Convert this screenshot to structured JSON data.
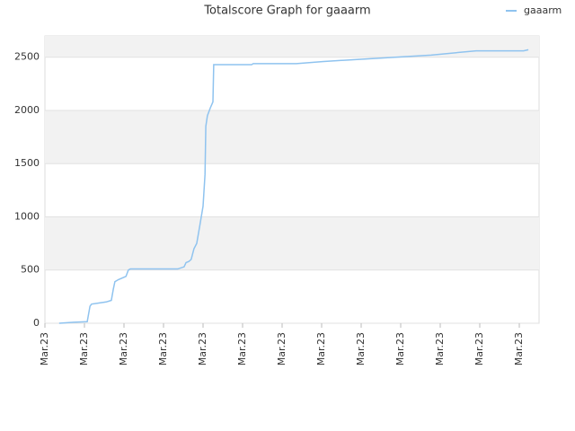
{
  "chart_data": {
    "type": "line",
    "title": "Totalscore Graph for gaaarm",
    "x": [
      0.36,
      0.73,
      1.07,
      1.14,
      1.18,
      1.36,
      1.55,
      1.68,
      1.73,
      1.77,
      1.86,
      2.05,
      2.11,
      2.16,
      3.36,
      3.52,
      3.57,
      3.64,
      3.7,
      3.77,
      3.84,
      3.91,
      4,
      4.05,
      4.07,
      4.11,
      4.18,
      4.25,
      4.27,
      5.23,
      5.27,
      6.36,
      7.05,
      7.95,
      8.86,
      9.77,
      10.91,
      12.11,
      12.23
    ],
    "series": [
      {
        "name": "gaaarm",
        "color": "#8fc3ef",
        "values": [
          0,
          10,
          15,
          160,
          180,
          190,
          200,
          215,
          320,
          390,
          410,
          440,
          500,
          510,
          510,
          530,
          570,
          580,
          600,
          700,
          750,
          900,
          1100,
          1400,
          1850,
          1950,
          2020,
          2080,
          2430,
          2430,
          2440,
          2440,
          2460,
          2480,
          2500,
          2520,
          2560,
          2560,
          2570
        ]
      }
    ],
    "xlim": [
      0,
      12.5
    ],
    "xticks": [
      {
        "value": 0,
        "label": "Mar.23"
      },
      {
        "value": 1,
        "label": "Mar.23"
      },
      {
        "value": 2,
        "label": "Mar.23"
      },
      {
        "value": 3,
        "label": "Mar.23"
      },
      {
        "value": 4,
        "label": "Mar.23"
      },
      {
        "value": 5,
        "label": "Mar.23"
      },
      {
        "value": 6,
        "label": "Mar.23"
      },
      {
        "value": 7,
        "label": "Mar.23"
      },
      {
        "value": 8,
        "label": "Mar.23"
      },
      {
        "value": 9,
        "label": "Mar.23"
      },
      {
        "value": 10,
        "label": "Mar.23"
      },
      {
        "value": 11,
        "label": "Mar.23"
      },
      {
        "value": 12,
        "label": "Mar.23"
      }
    ],
    "ylim": [
      0,
      2700
    ],
    "yticks": [
      0,
      500,
      1000,
      1500,
      2000,
      2500
    ],
    "grid": true,
    "legend": "top-right"
  }
}
